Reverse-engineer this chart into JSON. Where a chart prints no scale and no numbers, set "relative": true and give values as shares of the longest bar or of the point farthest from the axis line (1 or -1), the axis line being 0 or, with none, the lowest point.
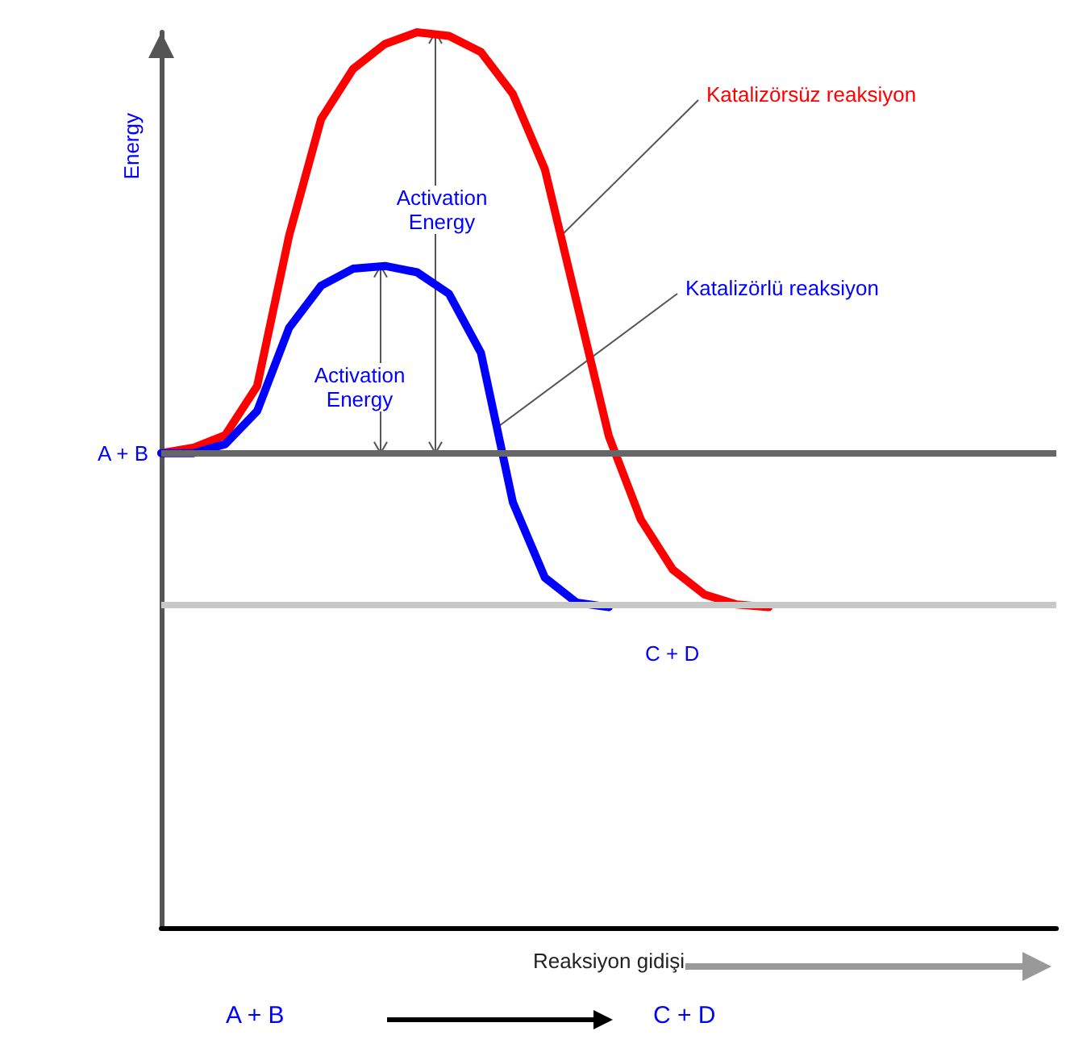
{
  "chart_data": {
    "type": "line",
    "relative": true,
    "xlabel": "Reaksiyon gidişi",
    "ylabel": "Energy",
    "categories": [
      null,
      null,
      null,
      null,
      null,
      null,
      null,
      null,
      null,
      null,
      null,
      null,
      null,
      null,
      null,
      null,
      null,
      null,
      null,
      null,
      null,
      null,
      null,
      null,
      null,
      null,
      null,
      null,
      null
    ],
    "series": [
      {
        "name": "Katalizörsüz reaksiyon",
        "color": "#ff0000",
        "values": [
          0.53,
          0.536,
          0.55,
          0.605,
          0.773,
          0.903,
          0.959,
          0.987,
          1,
          0.996,
          0.978,
          0.931,
          0.847,
          0.698,
          0.549,
          0.456,
          0.4,
          0.372,
          0.361,
          0.358,
          null,
          null,
          null,
          null,
          null,
          null,
          null,
          null,
          null
        ]
      },
      {
        "name": "Katalizörlü reaksiyon",
        "color": "#0000ff",
        "values": [
          0.53,
          0.53,
          0.54,
          0.577,
          0.67,
          0.717,
          0.736,
          0.739,
          0.732,
          0.708,
          0.642,
          0.475,
          0.391,
          0.363,
          0.358,
          null,
          null,
          null,
          null,
          null,
          null,
          null,
          null,
          null,
          null,
          null,
          null,
          null,
          null
        ]
      }
    ],
    "ref_lines": [
      {
        "axis": "y",
        "value": 0.53,
        "label": "A + B",
        "color": "#666666"
      },
      {
        "axis": "y",
        "value": 0.358,
        "label": "C + D",
        "color": "#c8c8c8"
      }
    ],
    "annotations": [
      "Activation Energy",
      "Activation Energy",
      "A + B",
      "C + D"
    ],
    "grid": false,
    "legend": false,
    "marker": "none",
    "line_style": "solid"
  }
}
